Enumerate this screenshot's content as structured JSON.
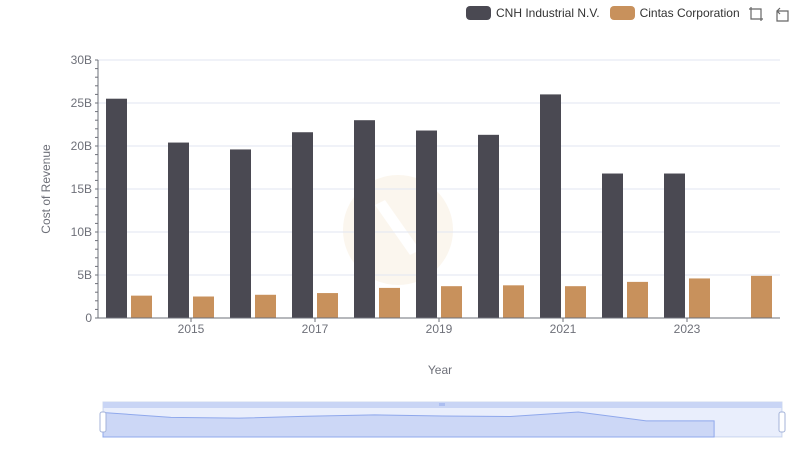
{
  "legend": {
    "items": [
      {
        "name": "CNH Industrial N.V.",
        "color": "#4a4952"
      },
      {
        "name": "Cintas Corporation",
        "color": "#c8915c"
      }
    ]
  },
  "toolbox": {
    "icons": [
      "zoom-icon",
      "reset-icon"
    ]
  },
  "chart_data": {
    "type": "bar",
    "title": "",
    "xlabel": "Year",
    "ylabel": "Cost of Revenue",
    "categories": [
      "2014",
      "2015",
      "2016",
      "2017",
      "2018",
      "2019",
      "2020",
      "2021",
      "2022",
      "2023",
      "2024"
    ],
    "x_tick_labels": [
      "2015",
      "2017",
      "2019",
      "2021",
      "2023"
    ],
    "y_tick_labels": [
      "0",
      "5B",
      "10B",
      "15B",
      "20B",
      "25B",
      "30B"
    ],
    "ylim": [
      0,
      30
    ],
    "value_unit": "B",
    "grid": true,
    "legend_position": "top-right",
    "series": [
      {
        "name": "CNH Industrial N.V.",
        "color": "#4a4952",
        "values": [
          25.5,
          20.4,
          19.6,
          21.6,
          23.0,
          21.8,
          21.3,
          26.0,
          16.8,
          16.8,
          null
        ]
      },
      {
        "name": "Cintas Corporation",
        "color": "#c8915c",
        "values": [
          2.6,
          2.5,
          2.7,
          2.9,
          3.5,
          3.7,
          3.8,
          3.7,
          4.2,
          4.6,
          4.9
        ]
      }
    ]
  }
}
